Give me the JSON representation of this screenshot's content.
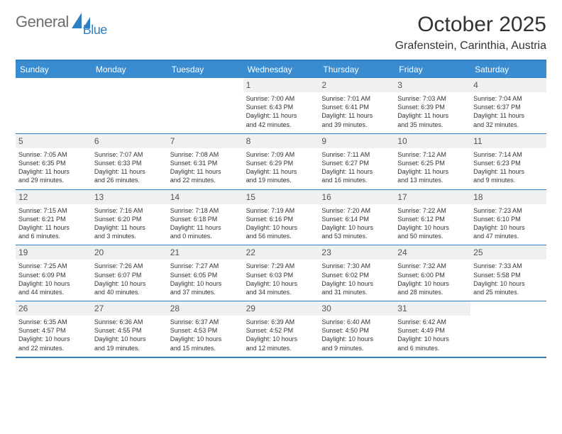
{
  "logo": {
    "general": "General",
    "blue": "Blue"
  },
  "header": {
    "month_title": "October 2025",
    "location": "Grafenstein, Carinthia, Austria"
  },
  "colors": {
    "brand_blue": "#3a8cd0",
    "rule_blue": "#2f7fc3",
    "daynum_bg": "#eef0f2",
    "text": "#333333",
    "logo_gray": "#6d6d6d"
  },
  "day_labels": [
    "Sunday",
    "Monday",
    "Tuesday",
    "Wednesday",
    "Thursday",
    "Friday",
    "Saturday"
  ],
  "weeks": [
    [
      {
        "n": "",
        "empty": true
      },
      {
        "n": "",
        "empty": true
      },
      {
        "n": "",
        "empty": true
      },
      {
        "n": "1",
        "sr": "7:00 AM",
        "ss": "6:43 PM",
        "dlh": "11",
        "dlm": "42"
      },
      {
        "n": "2",
        "sr": "7:01 AM",
        "ss": "6:41 PM",
        "dlh": "11",
        "dlm": "39"
      },
      {
        "n": "3",
        "sr": "7:03 AM",
        "ss": "6:39 PM",
        "dlh": "11",
        "dlm": "35"
      },
      {
        "n": "4",
        "sr": "7:04 AM",
        "ss": "6:37 PM",
        "dlh": "11",
        "dlm": "32"
      }
    ],
    [
      {
        "n": "5",
        "sr": "7:05 AM",
        "ss": "6:35 PM",
        "dlh": "11",
        "dlm": "29"
      },
      {
        "n": "6",
        "sr": "7:07 AM",
        "ss": "6:33 PM",
        "dlh": "11",
        "dlm": "26"
      },
      {
        "n": "7",
        "sr": "7:08 AM",
        "ss": "6:31 PM",
        "dlh": "11",
        "dlm": "22"
      },
      {
        "n": "8",
        "sr": "7:09 AM",
        "ss": "6:29 PM",
        "dlh": "11",
        "dlm": "19"
      },
      {
        "n": "9",
        "sr": "7:11 AM",
        "ss": "6:27 PM",
        "dlh": "11",
        "dlm": "16"
      },
      {
        "n": "10",
        "sr": "7:12 AM",
        "ss": "6:25 PM",
        "dlh": "11",
        "dlm": "13"
      },
      {
        "n": "11",
        "sr": "7:14 AM",
        "ss": "6:23 PM",
        "dlh": "11",
        "dlm": "9"
      }
    ],
    [
      {
        "n": "12",
        "sr": "7:15 AM",
        "ss": "6:21 PM",
        "dlh": "11",
        "dlm": "6"
      },
      {
        "n": "13",
        "sr": "7:16 AM",
        "ss": "6:20 PM",
        "dlh": "11",
        "dlm": "3"
      },
      {
        "n": "14",
        "sr": "7:18 AM",
        "ss": "6:18 PM",
        "dlh": "11",
        "dlm": "0"
      },
      {
        "n": "15",
        "sr": "7:19 AM",
        "ss": "6:16 PM",
        "dlh": "10",
        "dlm": "56"
      },
      {
        "n": "16",
        "sr": "7:20 AM",
        "ss": "6:14 PM",
        "dlh": "10",
        "dlm": "53"
      },
      {
        "n": "17",
        "sr": "7:22 AM",
        "ss": "6:12 PM",
        "dlh": "10",
        "dlm": "50"
      },
      {
        "n": "18",
        "sr": "7:23 AM",
        "ss": "6:10 PM",
        "dlh": "10",
        "dlm": "47"
      }
    ],
    [
      {
        "n": "19",
        "sr": "7:25 AM",
        "ss": "6:09 PM",
        "dlh": "10",
        "dlm": "44"
      },
      {
        "n": "20",
        "sr": "7:26 AM",
        "ss": "6:07 PM",
        "dlh": "10",
        "dlm": "40"
      },
      {
        "n": "21",
        "sr": "7:27 AM",
        "ss": "6:05 PM",
        "dlh": "10",
        "dlm": "37"
      },
      {
        "n": "22",
        "sr": "7:29 AM",
        "ss": "6:03 PM",
        "dlh": "10",
        "dlm": "34"
      },
      {
        "n": "23",
        "sr": "7:30 AM",
        "ss": "6:02 PM",
        "dlh": "10",
        "dlm": "31"
      },
      {
        "n": "24",
        "sr": "7:32 AM",
        "ss": "6:00 PM",
        "dlh": "10",
        "dlm": "28"
      },
      {
        "n": "25",
        "sr": "7:33 AM",
        "ss": "5:58 PM",
        "dlh": "10",
        "dlm": "25"
      }
    ],
    [
      {
        "n": "26",
        "sr": "6:35 AM",
        "ss": "4:57 PM",
        "dlh": "10",
        "dlm": "22"
      },
      {
        "n": "27",
        "sr": "6:36 AM",
        "ss": "4:55 PM",
        "dlh": "10",
        "dlm": "19"
      },
      {
        "n": "28",
        "sr": "6:37 AM",
        "ss": "4:53 PM",
        "dlh": "10",
        "dlm": "15"
      },
      {
        "n": "29",
        "sr": "6:39 AM",
        "ss": "4:52 PM",
        "dlh": "10",
        "dlm": "12"
      },
      {
        "n": "30",
        "sr": "6:40 AM",
        "ss": "4:50 PM",
        "dlh": "10",
        "dlm": "9"
      },
      {
        "n": "31",
        "sr": "6:42 AM",
        "ss": "4:49 PM",
        "dlh": "10",
        "dlm": "6"
      },
      {
        "n": "",
        "empty": true
      }
    ]
  ],
  "labels": {
    "sunrise_prefix": "Sunrise: ",
    "sunset_prefix": "Sunset: ",
    "daylight_prefix": "Daylight: ",
    "hours_word": " hours",
    "and_word": "and ",
    "minutes_word": " minutes."
  }
}
